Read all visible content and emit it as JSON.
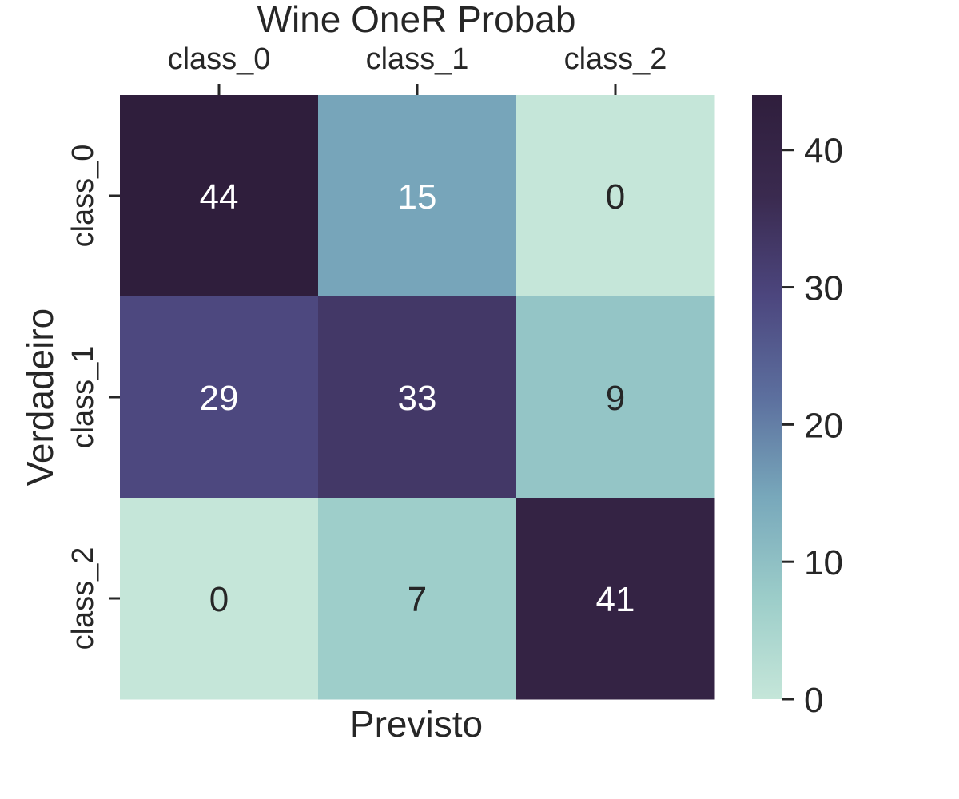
{
  "chart_data": {
    "type": "heatmap",
    "title": "Wine OneR Probab",
    "xlabel": "Previsto",
    "ylabel": "Verdadeiro",
    "x_categories": [
      "class_0",
      "class_1",
      "class_2"
    ],
    "y_categories": [
      "class_0",
      "class_1",
      "class_2"
    ],
    "values": [
      [
        44,
        15,
        0
      ],
      [
        29,
        33,
        9
      ],
      [
        0,
        7,
        41
      ]
    ],
    "x_axis_position": "top",
    "colorbar": {
      "range": [
        0,
        44
      ],
      "ticks": [
        0,
        10,
        20,
        30,
        40
      ],
      "colors": [
        "#c5e6d9",
        "#9ccdc9",
        "#78a8bb",
        "#5c6f9e",
        "#4c467e",
        "#3a2a4f",
        "#2f1e3c"
      ]
    },
    "annotation_dark_text": "#262626",
    "annotation_light_text": "#ffffff",
    "grid": false
  }
}
